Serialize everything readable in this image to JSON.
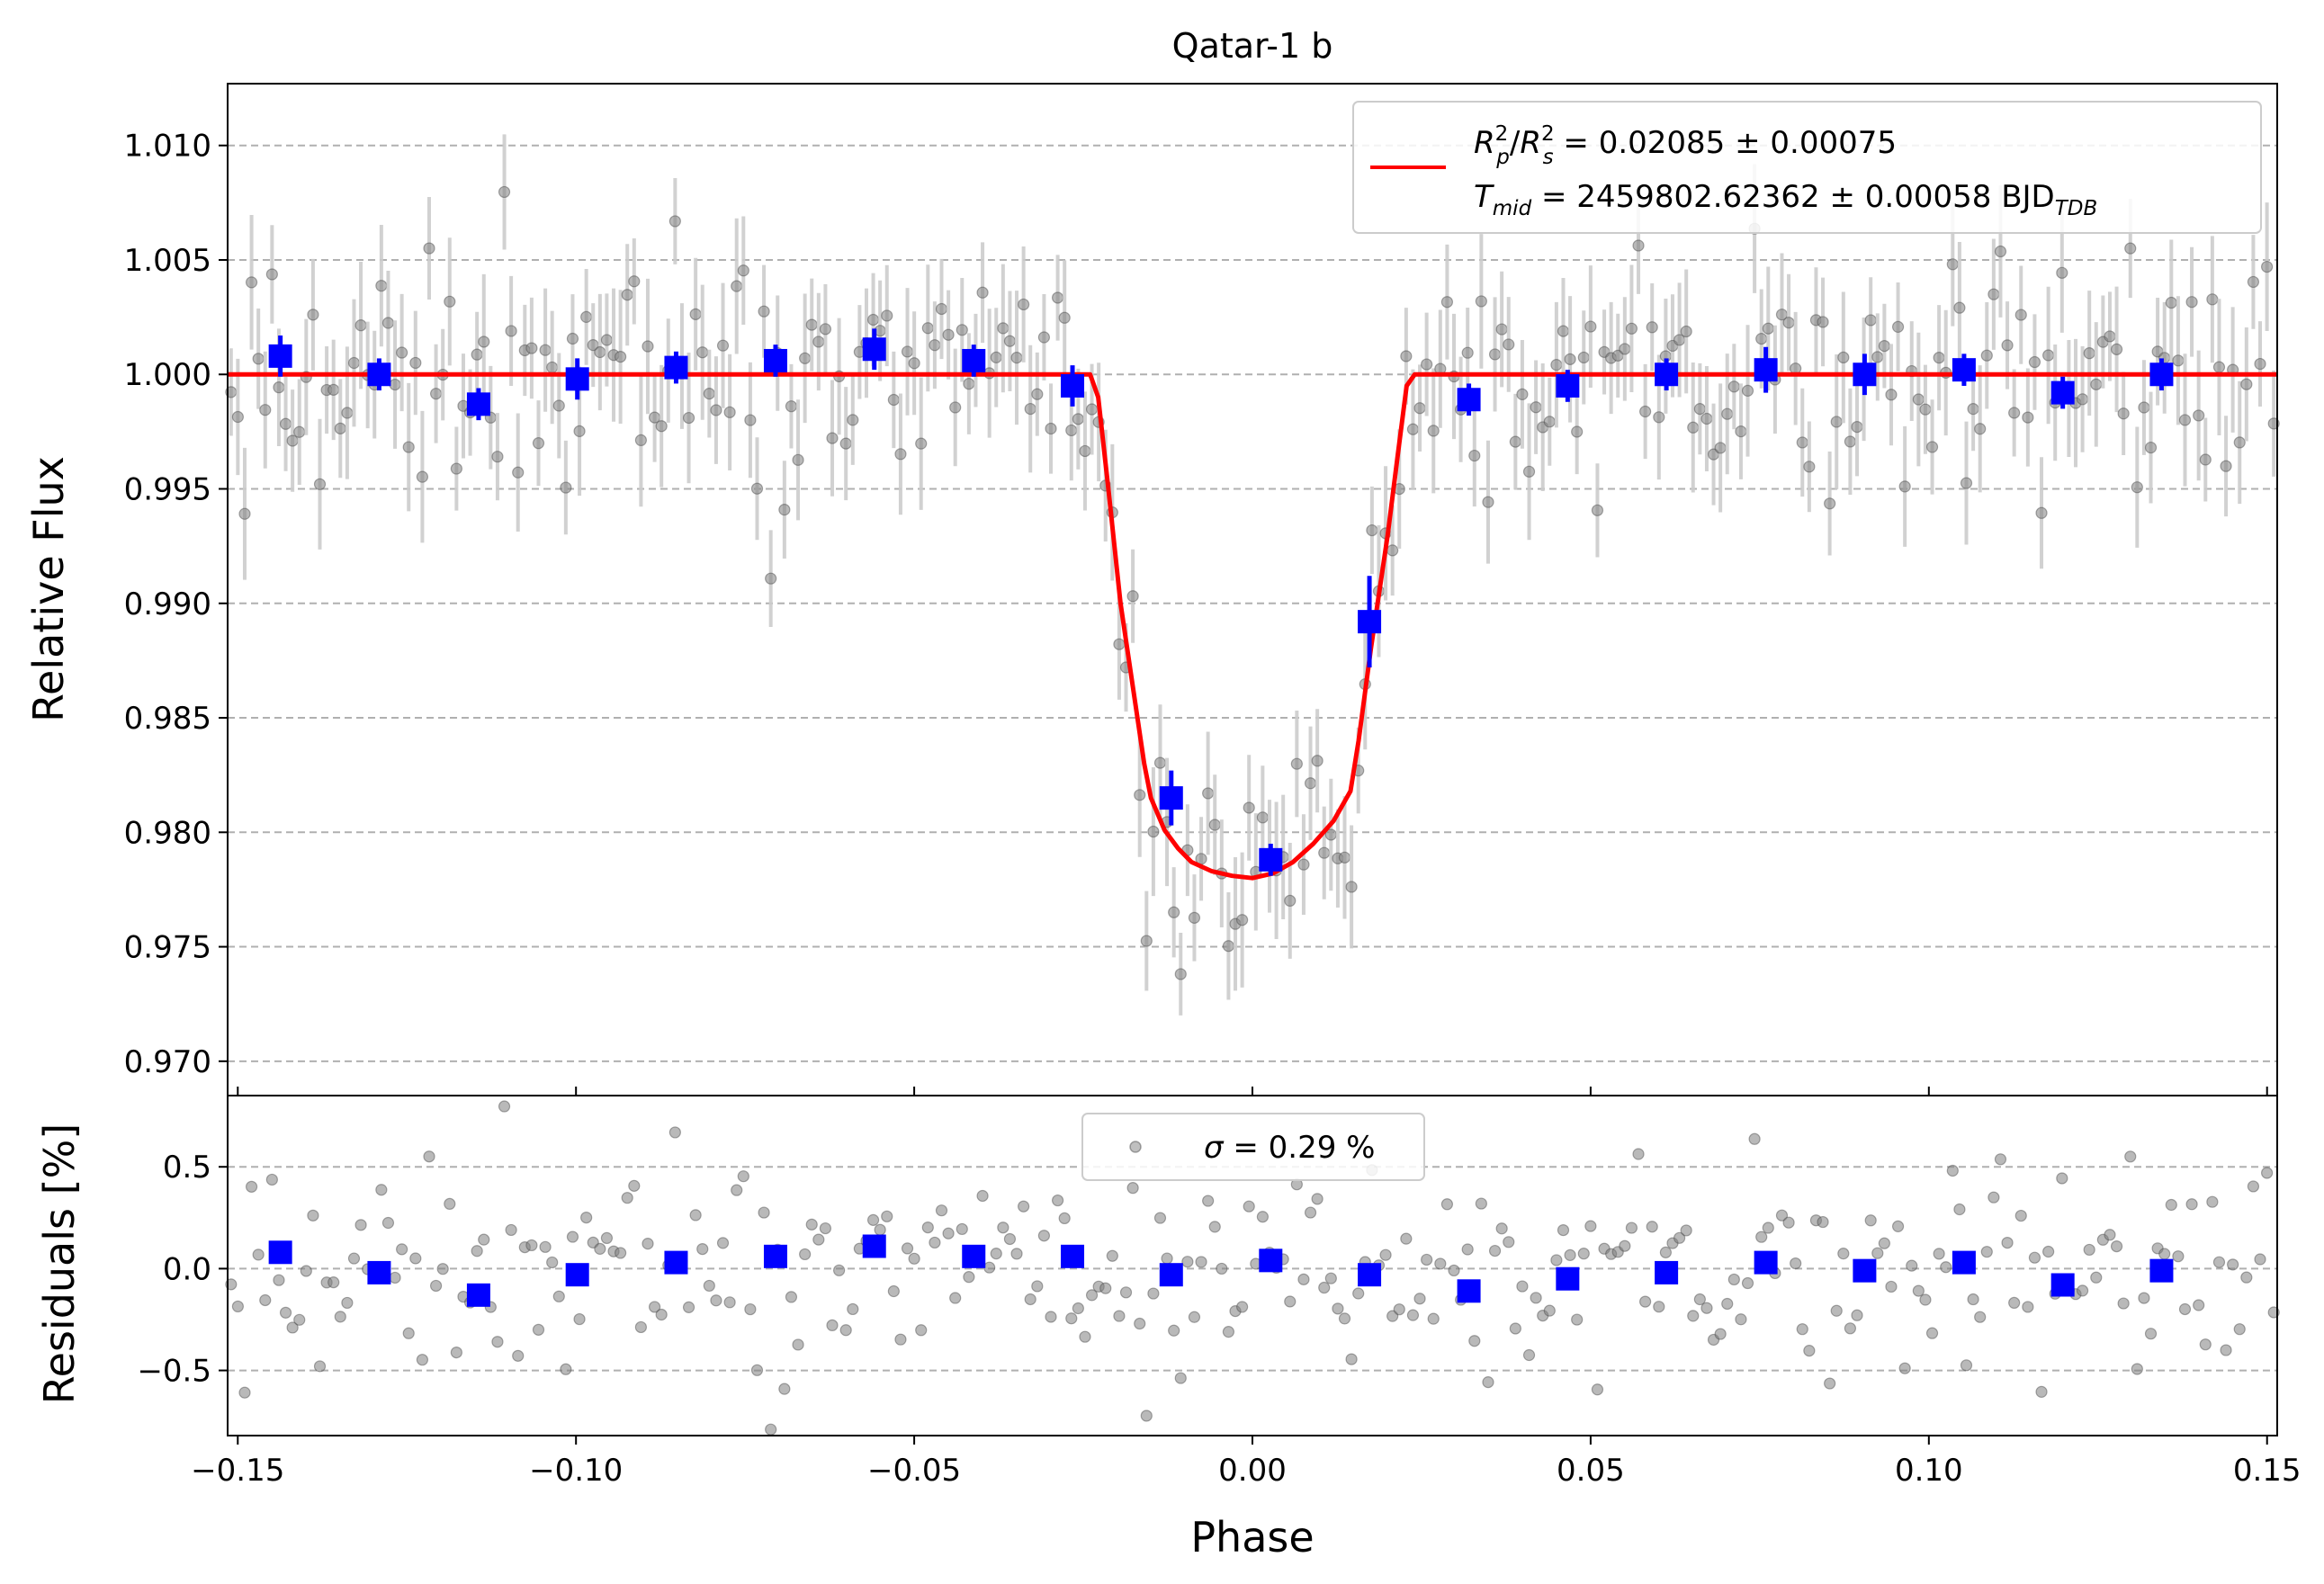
{
  "chart_data": [
    {
      "type": "scatter",
      "title": "Qatar-1 b",
      "ylabel": "Relative Flux",
      "xlim": [
        -0.1515,
        0.1515
      ],
      "ylim": [
        0.9685,
        1.0127
      ],
      "grid": "horizontal-dashed",
      "legend_position": "top-right",
      "yticks": [
        "0.970",
        "0.975",
        "0.980",
        "0.985",
        "0.990",
        "0.995",
        "1.000",
        "1.005",
        "1.010"
      ],
      "legend": {
        "model_prefix": "R",
        "model_line1_value": " = 0.02085 ± 0.00075",
        "model_line2_value": " = 2459802.62362 ± 0.00058 BJD"
      },
      "binned_series": {
        "x": [
          -0.1437,
          -0.1291,
          -0.1144,
          -0.0998,
          -0.0852,
          -0.0705,
          -0.0559,
          -0.0412,
          -0.0266,
          -0.012,
          0.0027,
          0.0173,
          0.032,
          0.0466,
          0.0612,
          0.0759,
          0.0905,
          0.1052,
          0.1198,
          0.1344
        ],
        "y": [
          1.0008,
          1.0,
          0.9987,
          0.9998,
          1.0003,
          1.0006,
          1.0011,
          1.0006,
          0.9995,
          0.9815,
          0.9788,
          0.9892,
          0.9989,
          0.9995,
          1.0,
          1.0002,
          1.0,
          1.0002,
          0.9992,
          1.0
        ],
        "yerr": [
          0.0009,
          0.0007,
          0.0007,
          0.0009,
          0.0007,
          0.0007,
          0.0009,
          0.0007,
          0.0009,
          0.0012,
          0.0007,
          0.002,
          0.0007,
          0.0007,
          0.0007,
          0.001,
          0.0009,
          0.0007,
          0.0007,
          0.0007
        ]
      },
      "model": {
        "x": [
          -0.1515,
          -0.024,
          -0.0228,
          -0.0213,
          -0.0195,
          -0.017,
          -0.016,
          -0.015,
          -0.013,
          -0.011,
          -0.009,
          -0.006,
          -0.003,
          0.0,
          0.003,
          0.006,
          0.009,
          0.012,
          0.0145,
          0.0157,
          0.0175,
          0.02,
          0.0215,
          0.0228,
          0.024,
          0.1515
        ],
        "y": [
          1.0,
          1.0,
          0.999,
          0.995,
          0.99,
          0.985,
          0.983,
          0.9815,
          0.9801,
          0.9793,
          0.9787,
          0.9783,
          0.9781,
          0.978,
          0.9782,
          0.9787,
          0.9795,
          0.9805,
          0.9818,
          0.984,
          0.988,
          0.993,
          0.9965,
          0.9995,
          1.0,
          1.0
        ]
      },
      "colors": {
        "binned": "#0000ff",
        "model": "#ff0000",
        "raw": "#808080",
        "raw_err": "#cccccc"
      }
    },
    {
      "type": "scatter",
      "xlabel": "Phase",
      "ylabel": "Residuals [%]",
      "xlim": [
        -0.1515,
        0.1515
      ],
      "ylim": [
        -0.82,
        0.85
      ],
      "grid": "horizontal-dashed",
      "legend_position": "top-center",
      "xticks": [
        "−0.15",
        "−0.10",
        "−0.05",
        "0.00",
        "0.05",
        "0.10",
        "0.15"
      ],
      "yticks": [
        "−0.5",
        "0.0",
        "0.5"
      ],
      "legend": {
        "value": " = 0.29 %"
      },
      "binned_series": {
        "x": [
          -0.1437,
          -0.1291,
          -0.1144,
          -0.0998,
          -0.0852,
          -0.0705,
          -0.0559,
          -0.0412,
          -0.0266,
          -0.012,
          0.0027,
          0.0173,
          0.032,
          0.0466,
          0.0612,
          0.0759,
          0.0905,
          0.1052,
          0.1198,
          0.1344
        ],
        "y": [
          0.08,
          -0.02,
          -0.13,
          -0.03,
          0.03,
          0.06,
          0.11,
          0.06,
          0.06,
          -0.03,
          0.04,
          -0.03,
          -0.11,
          -0.05,
          -0.02,
          0.03,
          -0.01,
          0.03,
          -0.08,
          -0.01
        ]
      },
      "colors": {
        "binned": "#0000ff",
        "raw": "#808080"
      }
    }
  ]
}
